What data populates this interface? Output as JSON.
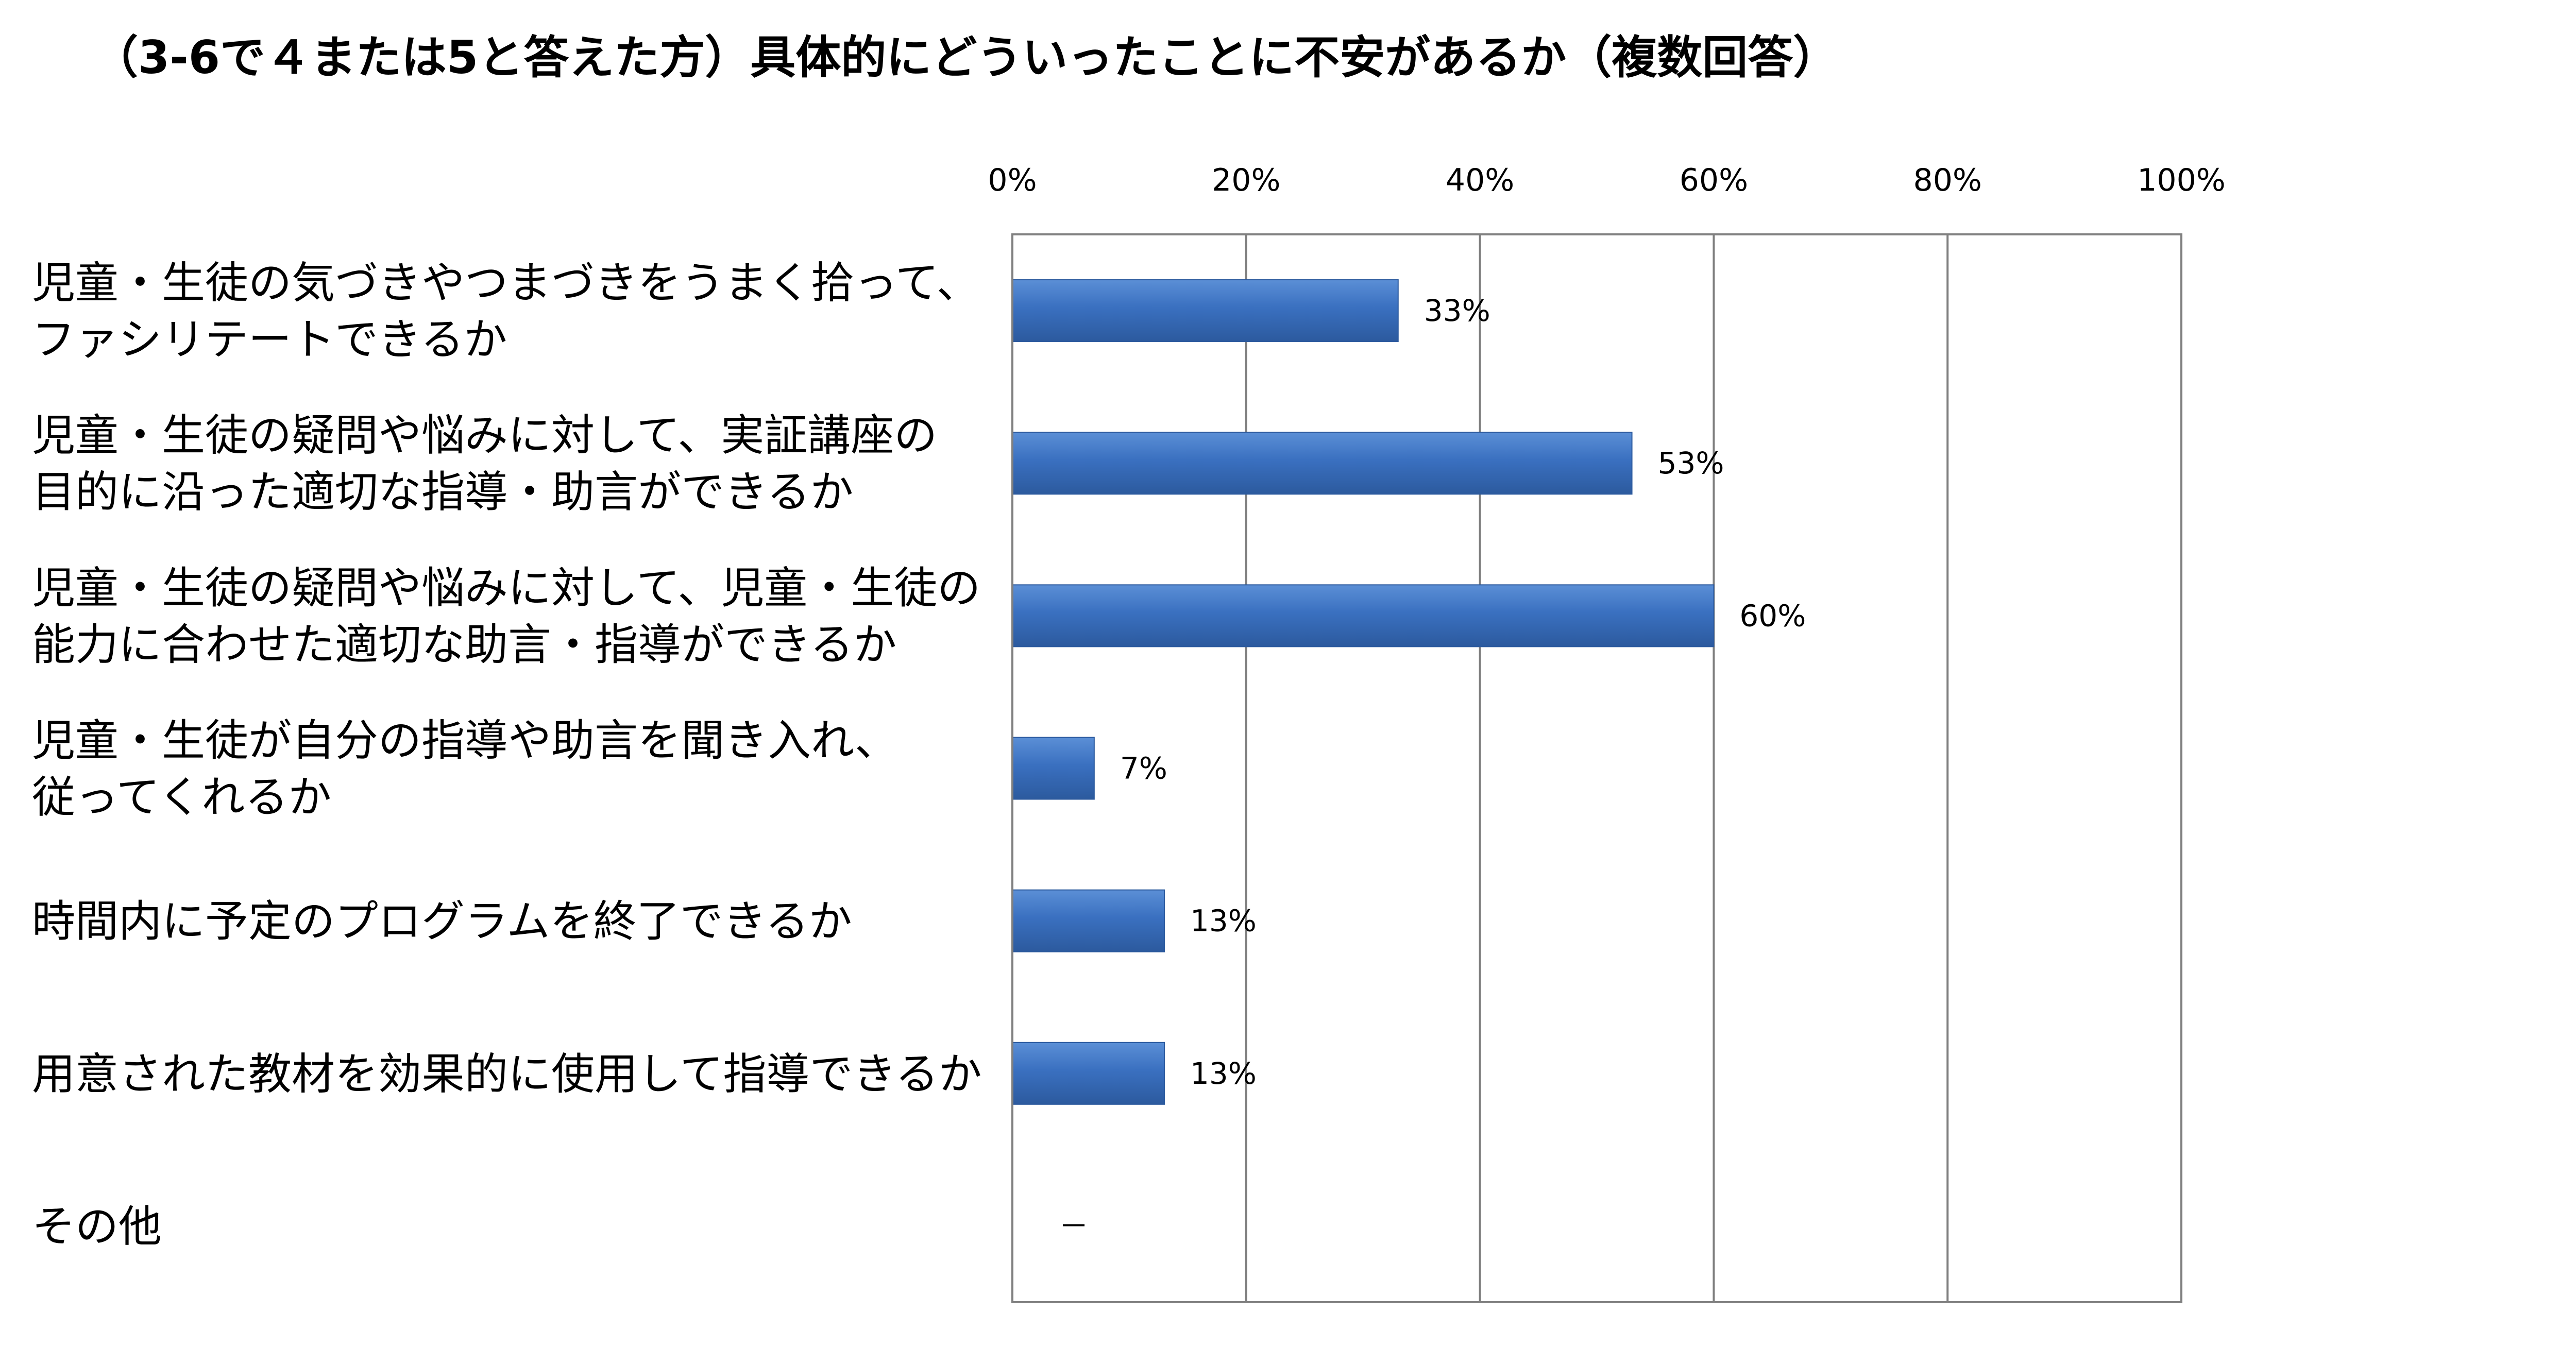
{
  "title": "（3-6で４または5と答えた方）具体的にどういったことに不安があるか（複数回答）",
  "chart_data": {
    "type": "bar",
    "orientation": "horizontal",
    "title": "（3-6で４または5と答えた方）具体的にどういったことに不安があるか（複数回答）",
    "categories": [
      [
        "児童・生徒の気づきやつまづきをうまく拾って、",
        "ファシリテートできるか"
      ],
      [
        "児童・生徒の疑問や悩みに対して、実証講座の",
        "目的に沿った適切な指導・助言ができるか"
      ],
      [
        "児童・生徒の疑問や悩みに対して、児童・生徒の",
        "能力に合わせた適切な助言・指導ができるか"
      ],
      [
        "児童・生徒が自分の指導や助言を聞き入れ、",
        "従ってくれるか"
      ],
      [
        "時間内に予定のプログラムを終了できるか"
      ],
      [
        "用意された教材を効果的に使用して指導できるか"
      ],
      [
        "その他"
      ]
    ],
    "values": [
      33,
      53,
      60,
      7,
      13,
      13,
      null
    ],
    "data_labels": [
      "33%",
      "53%",
      "60%",
      "7%",
      "13%",
      "13%",
      "－"
    ],
    "xlim": [
      0,
      100
    ],
    "xticks": [
      0,
      20,
      40,
      60,
      80,
      100
    ],
    "xtick_labels": [
      "0%",
      "20%",
      "40%",
      "60%",
      "80%",
      "100%"
    ],
    "x_axis_position": "top",
    "grid": true,
    "bar_color": "#3a70c0",
    "bar_color_dark": "#2c5a9e",
    "bar_color_light": "#5b8fd6",
    "grid_color": "#808080",
    "xlabel": "",
    "ylabel": ""
  }
}
